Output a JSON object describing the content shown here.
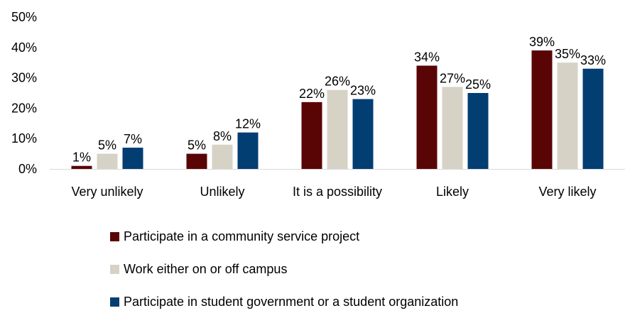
{
  "chart_data": {
    "type": "bar",
    "categories": [
      "Very unlikely",
      "Unlikely",
      "It is a possibility",
      "Likely",
      "Very likely"
    ],
    "series": [
      {
        "name": "Participate in a community service project",
        "values": [
          1,
          5,
          22,
          34,
          39
        ],
        "labels": [
          "1%",
          "5%",
          "22%",
          "34%",
          "39%"
        ],
        "color": "#5a0505"
      },
      {
        "name": "Work either on or off campus",
        "values": [
          5,
          8,
          26,
          27,
          35
        ],
        "labels": [
          "5%",
          "8%",
          "26%",
          "27%",
          "35%"
        ],
        "color": "#d6d3c6"
      },
      {
        "name": "Participate in student government or a student organization",
        "values": [
          7,
          12,
          23,
          25,
          33
        ],
        "labels": [
          "7%",
          "12%",
          "23%",
          "25%",
          "33%"
        ],
        "color": "#033e73"
      }
    ],
    "yticks": [
      "0%",
      "10%",
      "20%",
      "30%",
      "40%",
      "50%"
    ],
    "ylim": [
      0,
      50
    ],
    "legend_position": "bottom",
    "grid": false
  }
}
